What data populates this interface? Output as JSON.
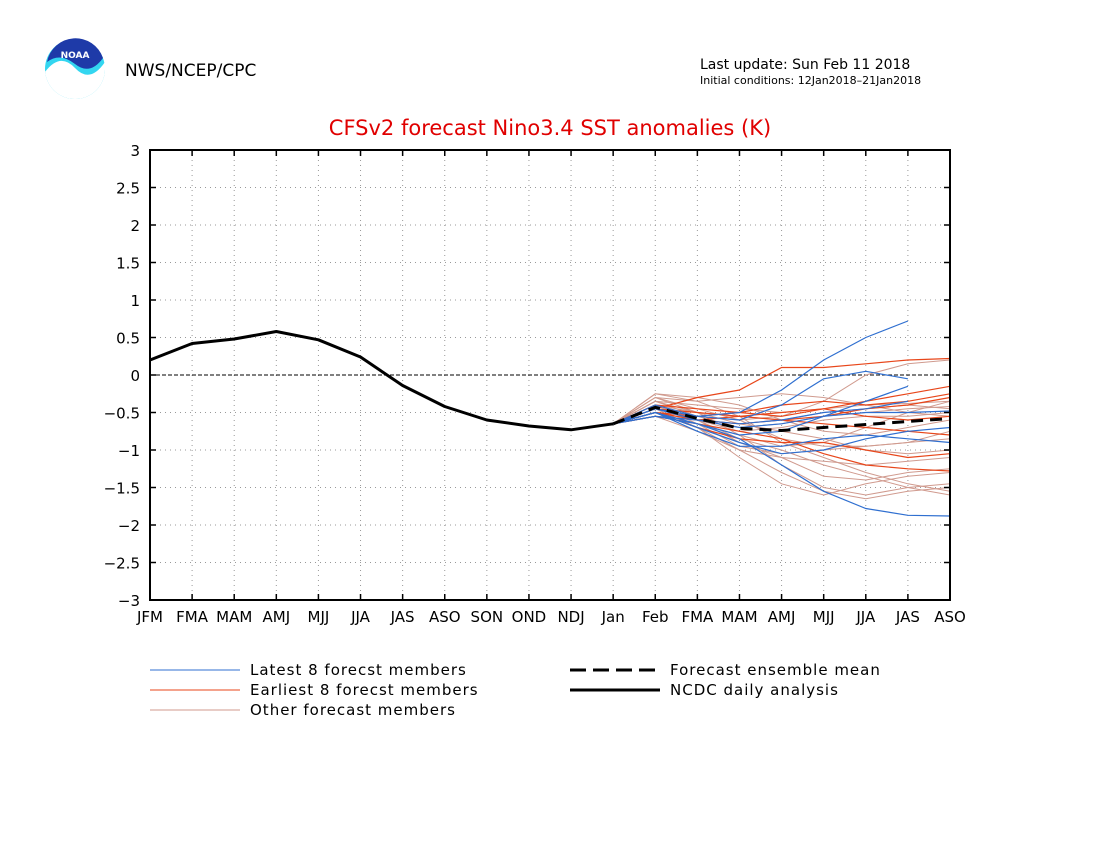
{
  "header": {
    "organization": "NWS/NCEP/CPC",
    "logo_text": "NOAA",
    "last_update": "Last update: Sun Feb 11 2018",
    "initial_conditions": "Initial conditions: 12Jan2018–21Jan2018"
  },
  "colors": {
    "title": "#e00000",
    "latest": "#2f6fd0",
    "earliest": "#e8461a",
    "other": "#d09a8e",
    "analysis": "#000000",
    "logo_outer": "#33d6f0",
    "logo_inner": "#1e3aa8"
  },
  "chart_data": {
    "type": "line",
    "title": "CFSv2 forecast Nino3.4 SST anomalies (K)",
    "xlabel": "",
    "ylabel": "",
    "categories": [
      "JFM",
      "FMA",
      "MAM",
      "AMJ",
      "MJJ",
      "JJA",
      "JAS",
      "ASO",
      "SON",
      "OND",
      "NDJ",
      "Jan",
      "Feb",
      "FMA",
      "MAM",
      "AMJ",
      "MJJ",
      "JJA",
      "JAS",
      "ASO"
    ],
    "ylim": [
      -3,
      3
    ],
    "yticks": [
      "3",
      "2.5",
      "2",
      "1.5",
      "1",
      "0.5",
      "0",
      "−0.5",
      "−1",
      "−1.5",
      "−2",
      "−2.5",
      "−3"
    ],
    "ytick_values": [
      3,
      2.5,
      2,
      1.5,
      1,
      0.5,
      0,
      -0.5,
      -1,
      -1.5,
      -2,
      -2.5,
      -3
    ],
    "grid": true,
    "zero_line": true,
    "legend_position": "bottom",
    "legend": [
      {
        "key": "latest",
        "label": "Latest 8 forecst members",
        "style": "thin"
      },
      {
        "key": "earliest",
        "label": "Earliest 8 forecst members",
        "style": "thin"
      },
      {
        "key": "other",
        "label": "Other forecast members",
        "style": "thin"
      },
      {
        "key": "mean",
        "label": "Forecast ensemble mean",
        "style": "dashed"
      },
      {
        "key": "analysis",
        "label": "NCDC daily analysis",
        "style": "thick"
      }
    ],
    "analysis": {
      "name": "NCDC daily analysis",
      "x_start": 0,
      "values": [
        0.2,
        0.42,
        0.48,
        0.58,
        0.47,
        0.24,
        -0.14,
        -0.42,
        -0.6,
        -0.68,
        -0.73,
        -0.65
      ]
    },
    "ensemble_mean": {
      "name": "Forecast ensemble mean",
      "x_start": 11,
      "values": [
        -0.65,
        -0.43,
        -0.58,
        -0.71,
        -0.74,
        -0.7,
        -0.66,
        -0.62,
        -0.58
      ]
    },
    "member_groups": [
      {
        "key": "other",
        "x_start": 11,
        "members": [
          [
            -0.65,
            -0.25,
            -0.35,
            -0.55,
            -0.9,
            -1.1,
            -1.3,
            -1.45,
            -1.55
          ],
          [
            -0.65,
            -0.3,
            -0.5,
            -0.8,
            -1.2,
            -1.5,
            -1.6,
            -1.5,
            -1.45
          ],
          [
            -0.65,
            -0.4,
            -0.6,
            -0.9,
            -1.1,
            -1.35,
            -1.4,
            -1.3,
            -1.25
          ],
          [
            -0.65,
            -0.35,
            -0.4,
            -0.45,
            -0.5,
            -0.45,
            -0.4,
            -0.38,
            -0.35
          ],
          [
            -0.65,
            -0.5,
            -0.7,
            -1.0,
            -1.3,
            -1.55,
            -1.65,
            -1.55,
            -1.5
          ],
          [
            -0.65,
            -0.45,
            -0.55,
            -0.6,
            -0.55,
            -0.35,
            0.0,
            0.15,
            0.2
          ],
          [
            -0.65,
            -0.3,
            -0.45,
            -0.6,
            -0.85,
            -0.95,
            -0.95,
            -0.9,
            -0.85
          ],
          [
            -0.65,
            -0.55,
            -0.75,
            -1.0,
            -1.1,
            -1.15,
            -1.2,
            -1.15,
            -1.1
          ],
          [
            -0.65,
            -0.4,
            -0.5,
            -0.55,
            -0.6,
            -0.5,
            -0.45,
            -0.4,
            -0.45
          ],
          [
            -0.65,
            -0.25,
            -0.3,
            -0.4,
            -0.6,
            -0.75,
            -0.8,
            -0.7,
            -0.6
          ],
          [
            -0.65,
            -0.5,
            -0.65,
            -0.8,
            -0.95,
            -0.9,
            -0.7,
            -0.5,
            -0.35
          ],
          [
            -0.65,
            -0.45,
            -0.7,
            -1.1,
            -1.45,
            -1.6,
            -1.45,
            -1.35,
            -1.3
          ],
          [
            -0.65,
            -0.35,
            -0.5,
            -0.65,
            -0.75,
            -0.85,
            -1.0,
            -1.05,
            -1.0
          ],
          [
            -0.65,
            -0.3,
            -0.35,
            -0.3,
            -0.25,
            -0.3,
            -0.4,
            -0.5,
            -0.55
          ],
          [
            -0.65,
            -0.5,
            -0.6,
            -0.75,
            -0.7,
            -0.6,
            -0.55,
            -0.55,
            -0.5
          ],
          [
            -0.65,
            -0.4,
            -0.65,
            -0.95,
            -1.05,
            -1.0,
            -0.95,
            -0.9,
            -0.75
          ],
          [
            -0.65,
            -0.35,
            -0.55,
            -0.7,
            -0.65,
            -0.55,
            -0.5,
            -0.45,
            -0.42
          ],
          [
            -0.65,
            -0.45,
            -0.6,
            -0.85,
            -1.0,
            -1.2,
            -1.35,
            -1.5,
            -1.6
          ]
        ]
      },
      {
        "key": "earliest",
        "x_start": 11,
        "members": [
          [
            -0.65,
            -0.45,
            -0.3,
            -0.2,
            0.1,
            0.1,
            0.15,
            0.2,
            0.22
          ],
          [
            -0.65,
            -0.5,
            -0.55,
            -0.5,
            -0.4,
            -0.35,
            -0.4,
            -0.35,
            -0.25
          ],
          [
            -0.65,
            -0.55,
            -0.6,
            -0.55,
            -0.5,
            -0.45,
            -0.55,
            -0.6,
            -0.55
          ],
          [
            -0.65,
            -0.5,
            -0.7,
            -0.85,
            -0.9,
            -0.9,
            -1.0,
            -1.1,
            -1.05
          ],
          [
            -0.65,
            -0.55,
            -0.65,
            -0.75,
            -0.85,
            -1.05,
            -1.2,
            -1.25,
            -1.28
          ],
          [
            -0.65,
            -0.4,
            -0.45,
            -0.5,
            -0.55,
            -0.45,
            -0.35,
            -0.25,
            -0.15
          ],
          [
            -0.65,
            -0.5,
            -0.6,
            -0.65,
            -0.6,
            -0.65,
            -0.7,
            -0.75,
            -0.8
          ],
          [
            -0.65,
            -0.45,
            -0.5,
            -0.55,
            -0.6,
            -0.55,
            -0.45,
            -0.4,
            -0.3
          ]
        ]
      },
      {
        "key": "latest",
        "x_start": 11,
        "members": [
          [
            -0.65,
            -0.45,
            -0.55,
            -0.5,
            -0.2,
            0.2,
            0.5,
            0.72
          ],
          [
            -0.65,
            -0.5,
            -0.65,
            -0.85,
            -1.2,
            -1.55,
            -1.78,
            -1.87,
            -1.88
          ],
          [
            -0.65,
            -0.4,
            -0.55,
            -0.6,
            -0.4,
            -0.05,
            0.05,
            -0.05
          ],
          [
            -0.65,
            -0.55,
            -0.65,
            -0.8,
            -0.75,
            -0.55,
            -0.35,
            -0.15
          ],
          [
            -0.65,
            -0.5,
            -0.75,
            -0.95,
            -0.95,
            -0.85,
            -0.8,
            -0.85,
            -0.9
          ],
          [
            -0.65,
            -0.45,
            -0.6,
            -0.65,
            -0.6,
            -0.5,
            -0.45,
            -0.35
          ],
          [
            -0.65,
            -0.5,
            -0.7,
            -0.9,
            -1.05,
            -1.0,
            -0.85,
            -0.75,
            -0.7
          ],
          [
            -0.65,
            -0.55,
            -0.6,
            -0.7,
            -0.65,
            -0.55,
            -0.5,
            -0.5,
            -0.48
          ]
        ]
      }
    ]
  }
}
